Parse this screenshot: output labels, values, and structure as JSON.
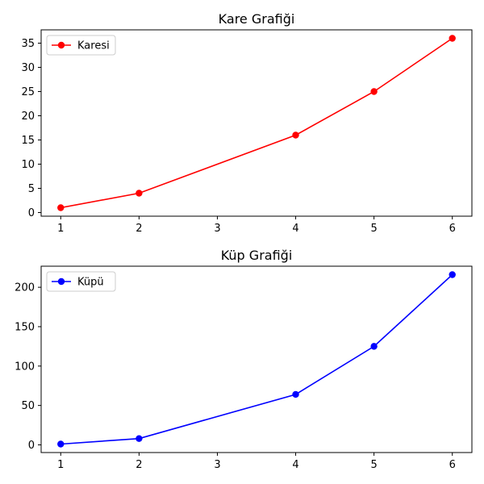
{
  "chart_data": [
    {
      "type": "line",
      "title": "Kare Grafiği",
      "xlabel": "",
      "ylabel": "",
      "x": [
        1,
        2,
        4,
        5,
        6
      ],
      "series": [
        {
          "name": "Karesi",
          "values": [
            1,
            4,
            16,
            25,
            36
          ],
          "color": "#ff0000",
          "marker": "circle"
        }
      ],
      "xticks": [
        1,
        2,
        3,
        4,
        5,
        6
      ],
      "yticks": [
        0,
        5,
        10,
        15,
        20,
        25,
        30,
        35
      ],
      "xlim": [
        0.75,
        6.25
      ],
      "ylim": [
        -0.75,
        37.75
      ],
      "grid": false,
      "legend": "upper-left"
    },
    {
      "type": "line",
      "title": "Küp Grafiği",
      "xlabel": "",
      "ylabel": "",
      "x": [
        1,
        2,
        4,
        5,
        6
      ],
      "series": [
        {
          "name": "Küpü",
          "values": [
            1,
            8,
            64,
            125,
            216
          ],
          "color": "#0000ff",
          "marker": "circle"
        }
      ],
      "xticks": [
        1,
        2,
        3,
        4,
        5,
        6
      ],
      "yticks": [
        0,
        50,
        100,
        150,
        200
      ],
      "xlim": [
        0.75,
        6.25
      ],
      "ylim": [
        -9.75,
        226.75
      ],
      "grid": false,
      "legend": "upper-left"
    }
  ]
}
